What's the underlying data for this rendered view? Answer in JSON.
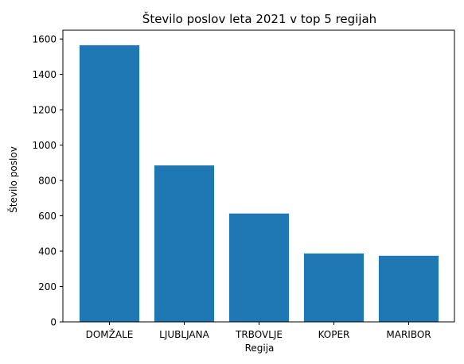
{
  "chart_data": {
    "type": "bar",
    "title": "Število poslov leta 2021 v top 5 regijah",
    "xlabel": "Regija",
    "ylabel": "Število poslov",
    "categories": [
      "DOMŽALE",
      "LJUBLJANA",
      "TRBOVLJE",
      "KOPER",
      "MARIBOR"
    ],
    "values": [
      1565,
      885,
      613,
      387,
      374
    ],
    "ylim": [
      0,
      1650
    ],
    "yticks": [
      0,
      200,
      400,
      600,
      800,
      1000,
      1200,
      1400,
      1600
    ],
    "grid": false,
    "bar_color": "#1f77b4"
  }
}
